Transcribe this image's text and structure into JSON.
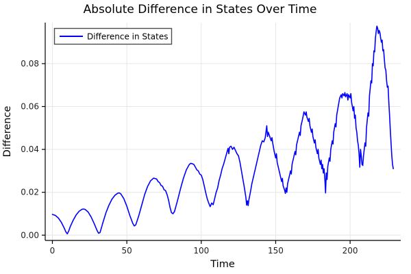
{
  "figure": {
    "background": "#ffffff"
  },
  "chart_data": {
    "type": "line",
    "title": "Absolute Difference in States Over Time",
    "xlabel": "Time",
    "ylabel": "Difference",
    "grid": true,
    "legend_position": "top-left",
    "legend_entries": [
      {
        "label": "Difference in States",
        "color": "#0000ff"
      }
    ],
    "xticks": [
      0,
      50,
      100,
      150,
      200
    ],
    "yticks": [
      0.0,
      0.02,
      0.04,
      0.06,
      0.08
    ],
    "xlim": [
      -4.83,
      234.0
    ],
    "ylim": [
      -0.00246,
      0.09914
    ],
    "series": [
      {
        "name": "Difference in States",
        "color": "#0000ff",
        "x": [
          0,
          2,
          4,
          6,
          8,
          9,
          10,
          11,
          12,
          14,
          16,
          18,
          20,
          21,
          22,
          24,
          26,
          28,
          30,
          31,
          32,
          34,
          36,
          38,
          40,
          42,
          44,
          45,
          46,
          48,
          50,
          52,
          54,
          55,
          56,
          58,
          60,
          62,
          64,
          66,
          68,
          70,
          71,
          72,
          73,
          74,
          75,
          76,
          77,
          78,
          79,
          80,
          81,
          82,
          84,
          86,
          88,
          90,
          92,
          93,
          94,
          95,
          96,
          97,
          98,
          99,
          100,
          101,
          102,
          103,
          104,
          105,
          106,
          107,
          108,
          109,
          110,
          111,
          112,
          113,
          114,
          115,
          116,
          117,
          118,
          118.5,
          119,
          120,
          121,
          122,
          123,
          124,
          125,
          126,
          127,
          128,
          129,
          130,
          130.5,
          131,
          131.5,
          132,
          133,
          134,
          135,
          136,
          137,
          138,
          139,
          140,
          141,
          142,
          143,
          144,
          144.5,
          145,
          146,
          147,
          147.5,
          148,
          149,
          150,
          150.5,
          151,
          152,
          153,
          154,
          154.5,
          155,
          156,
          156.5,
          157,
          157.5,
          158,
          159,
          160,
          160.5,
          161,
          162,
          163,
          163.5,
          164,
          165,
          166,
          166.5,
          167,
          168,
          169,
          170,
          170.5,
          171,
          172,
          172.5,
          173,
          174,
          174.5,
          175,
          176,
          176.5,
          177,
          178,
          178.5,
          179,
          180,
          180.5,
          181,
          181.5,
          182,
          182.5,
          183,
          183.5,
          184,
          184.5,
          185,
          186,
          186.5,
          187,
          188,
          188.5,
          189,
          190,
          190.5,
          191,
          192,
          193,
          194,
          194.5,
          195,
          196,
          196.5,
          197,
          198,
          198.5,
          199,
          200,
          200.5,
          201,
          202,
          202.5,
          203,
          203.5,
          204,
          204.5,
          205,
          205.5,
          206,
          206.5,
          207,
          207.5,
          208,
          208.5,
          209,
          210,
          210.5,
          211,
          212,
          212.5,
          213,
          214,
          214.5,
          215,
          215.5,
          216,
          216.5,
          217,
          217.5,
          218,
          218.5,
          219,
          219.5,
          220,
          220.5,
          221,
          221.5,
          222,
          222.5,
          223,
          223.5,
          224,
          224.5,
          225,
          225.5,
          226,
          226.5,
          227,
          227.5,
          228,
          228.5,
          229
        ],
        "y": [
          0.0097,
          0.0092,
          0.008,
          0.006,
          0.0032,
          0.0016,
          0.0006,
          0.002,
          0.004,
          0.007,
          0.0095,
          0.0112,
          0.0121,
          0.0122,
          0.012,
          0.0108,
          0.0085,
          0.0055,
          0.0022,
          0.0009,
          0.0012,
          0.006,
          0.0105,
          0.014,
          0.0168,
          0.0186,
          0.0196,
          0.0197,
          0.0192,
          0.017,
          0.0135,
          0.0092,
          0.0055,
          0.0043,
          0.0048,
          0.009,
          0.014,
          0.019,
          0.0228,
          0.0254,
          0.0266,
          0.0262,
          0.025,
          0.0245,
          0.0232,
          0.0228,
          0.0212,
          0.0208,
          0.019,
          0.0165,
          0.013,
          0.0105,
          0.01,
          0.011,
          0.016,
          0.0215,
          0.0265,
          0.0305,
          0.033,
          0.0335,
          0.0333,
          0.033,
          0.0318,
          0.0305,
          0.03,
          0.0285,
          0.028,
          0.026,
          0.023,
          0.0198,
          0.017,
          0.015,
          0.0133,
          0.015,
          0.0142,
          0.017,
          0.02,
          0.022,
          0.0255,
          0.028,
          0.031,
          0.033,
          0.0355,
          0.038,
          0.0405,
          0.038,
          0.041,
          0.0415,
          0.04,
          0.041,
          0.0395,
          0.038,
          0.037,
          0.034,
          0.03,
          0.026,
          0.022,
          0.0175,
          0.014,
          0.016,
          0.0138,
          0.0165,
          0.02,
          0.024,
          0.027,
          0.03,
          0.033,
          0.036,
          0.039,
          0.042,
          0.044,
          0.0435,
          0.0455,
          0.051,
          0.046,
          0.048,
          0.046,
          0.044,
          0.0455,
          0.043,
          0.039,
          0.036,
          0.038,
          0.034,
          0.031,
          0.028,
          0.025,
          0.0265,
          0.023,
          0.021,
          0.0195,
          0.022,
          0.02,
          0.024,
          0.027,
          0.03,
          0.0285,
          0.033,
          0.036,
          0.039,
          0.0375,
          0.042,
          0.045,
          0.048,
          0.0465,
          0.051,
          0.054,
          0.0575,
          0.056,
          0.0575,
          0.055,
          0.053,
          0.0545,
          0.051,
          0.048,
          0.0495,
          0.046,
          0.043,
          0.0445,
          0.041,
          0.038,
          0.04,
          0.036,
          0.033,
          0.035,
          0.031,
          0.033,
          0.029,
          0.031,
          0.0265,
          0.0197,
          0.029,
          0.026,
          0.032,
          0.036,
          0.0345,
          0.04,
          0.044,
          0.0425,
          0.048,
          0.052,
          0.0505,
          0.056,
          0.06,
          0.064,
          0.0655,
          0.064,
          0.066,
          0.065,
          0.0665,
          0.0645,
          0.066,
          0.063,
          0.0655,
          0.064,
          0.066,
          0.062,
          0.058,
          0.06,
          0.0545,
          0.056,
          0.05,
          0.048,
          0.044,
          0.042,
          0.038,
          0.0317,
          0.04,
          0.037,
          0.033,
          0.0325,
          0.037,
          0.043,
          0.0415,
          0.05,
          0.057,
          0.0555,
          0.065,
          0.072,
          0.071,
          0.08,
          0.079,
          0.086,
          0.0855,
          0.092,
          0.095,
          0.0975,
          0.0965,
          0.094,
          0.0955,
          0.0945,
          0.092,
          0.09,
          0.091,
          0.086,
          0.0865,
          0.082,
          0.078,
          0.077,
          0.072,
          0.069,
          0.0695,
          0.062,
          0.056,
          0.049,
          0.043,
          0.037,
          0.033,
          0.031
        ]
      }
    ]
  },
  "colors": {
    "line": "#0000ff",
    "grid": "#e6e6e6",
    "axis": "#000000",
    "legend_border": "#4d4d4d",
    "legend_background": "#ffffff",
    "tick_label": "#1f1f1f"
  }
}
